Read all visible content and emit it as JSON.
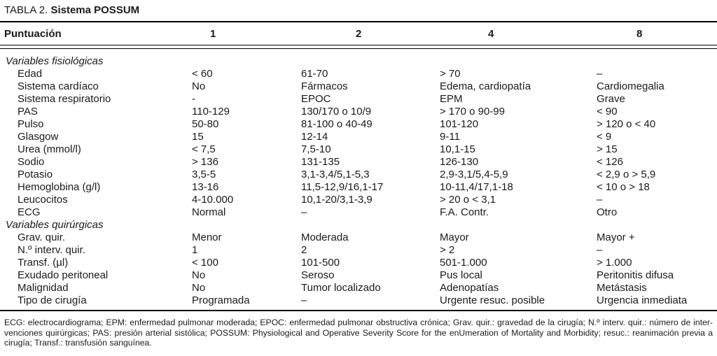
{
  "title": {
    "prefix": "TABLA 2. ",
    "name": "Sistema POSSUM"
  },
  "table": {
    "header": {
      "label": "Puntuación",
      "scores": [
        "1",
        "2",
        "4",
        "8"
      ]
    },
    "sections": [
      {
        "name": "Variables fisiológicas",
        "rows": [
          {
            "label": "Edad",
            "values": [
              "< 60",
              "61-70",
              "> 70",
              "–"
            ]
          },
          {
            "label": "Sistema cardíaco",
            "values": [
              "No",
              "Fármacos",
              "Edema, cardiopatía",
              "Cardiomegalia"
            ]
          },
          {
            "label": "Sistema respiratorio",
            "values": [
              "-",
              "EPOC",
              "EPM",
              "Grave"
            ]
          },
          {
            "label": "PAS",
            "values": [
              "110-129",
              "130/170 o 10/9",
              "> 170 o 90-99",
              "< 90"
            ]
          },
          {
            "label": "Pulso",
            "values": [
              "50-80",
              "81-100 o 40-49",
              "101-120",
              "> 120 o < 40"
            ]
          },
          {
            "label": "Glasgow",
            "values": [
              "15",
              "12-14",
              "9-11",
              "< 9"
            ]
          },
          {
            "label": "Urea (mmol/l)",
            "values": [
              "< 7,5",
              "7,5-10",
              "10,1-15",
              "> 15"
            ]
          },
          {
            "label": "Sodio",
            "values": [
              "> 136",
              "131-135",
              "126-130",
              "< 126"
            ]
          },
          {
            "label": "Potasio",
            "values": [
              "3,5-5",
              "3,1-3,4/5,1-5,3",
              "2,9-3,1/5,4-5,9",
              "< 2,9 o > 5,9"
            ]
          },
          {
            "label": "Hemoglobina (g/l)",
            "values": [
              "13-16",
              "11,5-12,9/16,1-17",
              "10-11,4/17,1-18",
              "< 10 o > 18"
            ]
          },
          {
            "label": "Leucocitos",
            "values": [
              "4-10.000",
              "10,1-20/3,1-3,9",
              "> 20 o < 3,1",
              "–"
            ]
          },
          {
            "label": "ECG",
            "values": [
              "Normal",
              "–",
              "F.A. Contr.",
              "Otro"
            ]
          }
        ]
      },
      {
        "name": "Variables quirúrgicas",
        "rows": [
          {
            "label": "Grav. quir.",
            "values": [
              "Menor",
              "Moderada",
              "Mayor",
              "Mayor +"
            ]
          },
          {
            "label": "N.º interv. quir.",
            "values": [
              "1",
              "2",
              "> 2",
              "–"
            ]
          },
          {
            "label": "Transf. (µl)",
            "values": [
              "< 100",
              "101-500",
              "501-1.000",
              "> 1.000"
            ]
          },
          {
            "label": "Exudado peritoneal",
            "values": [
              "No",
              "Seroso",
              "Pus local",
              "Peritonitis difusa"
            ]
          },
          {
            "label": "Malignidad",
            "values": [
              "No",
              "Tumor localizado",
              "Adenopatías",
              "Metástasis"
            ]
          },
          {
            "label": "Tipo de cirugía",
            "values": [
              "Programada",
              "–",
              "Urgente resuc. posible",
              "Urgencia inmediata"
            ]
          }
        ]
      }
    ]
  },
  "footnote": {
    "lines": [
      "ECG: electrocardiograma; EPM: enfermedad pulmonar moderada; EPOC: enfermedad pulmonar obstructiva crónica; Grav. quir.: gravedad de la cirugía; N.º interv. quir.: número de inter-",
      "venciones quirúrgicas; PAS: presión arterial sistólica; POSSUM: Physiological and Operative Severity Score for the enUmeration of Mortality and Morbidity; resuc.: reanimación previa a",
      "cirugía; Transf.: transfusión sanguínea."
    ]
  }
}
